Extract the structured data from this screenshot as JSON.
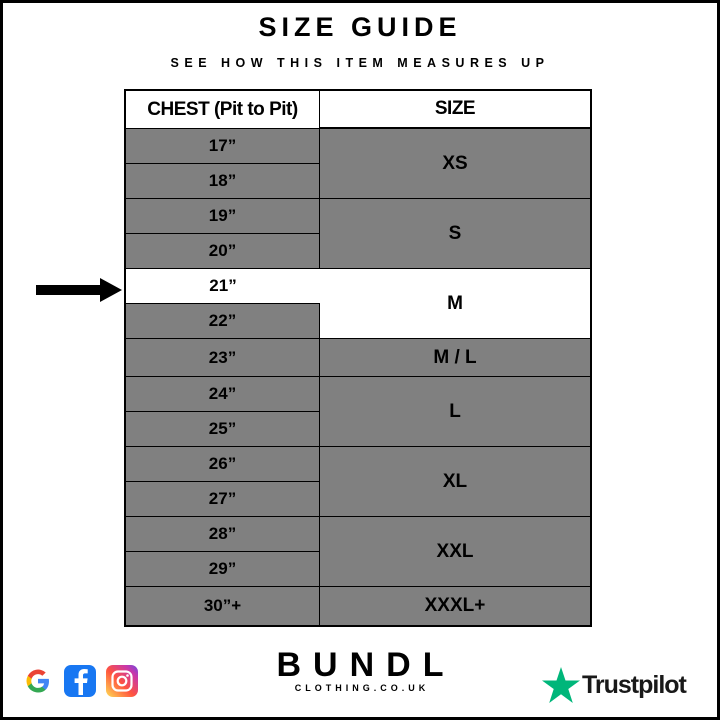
{
  "header": {
    "title": "SIZE GUIDE",
    "subtitle": "SEE HOW THIS ITEM MEASURES UP"
  },
  "table": {
    "headers": [
      "CHEST (Pit to Pit)",
      "SIZE"
    ],
    "chest": [
      "17”",
      "18”",
      "19”",
      "20”",
      "21”",
      "22”",
      "23”",
      "24”",
      "25”",
      "26”",
      "27”",
      "28”",
      "29”",
      "30”+"
    ],
    "sizes": [
      "XS",
      "S",
      "M",
      "M / L",
      "L",
      "XL",
      "XXL",
      "XXXL+"
    ],
    "highlighted_chest": "21”",
    "highlighted_size": "M"
  },
  "colors": {
    "row_fill": "#808080",
    "highlight": "#ffffff",
    "trustpilot_green": "#00b67a"
  },
  "footer": {
    "brand": "BUNDL",
    "brand_sub": "CLOTHING.CO.UK",
    "social_icons": [
      "google-icon",
      "facebook-icon",
      "instagram-icon"
    ],
    "trustpilot": "Trustpilot"
  }
}
